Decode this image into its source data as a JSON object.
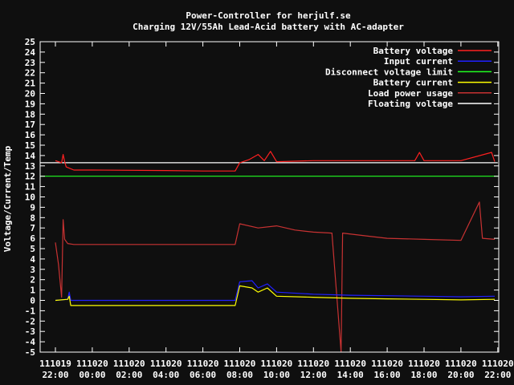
{
  "chart_data": {
    "type": "line",
    "title": "Power-Controller for herjulf.se",
    "subtitle": "Charging 12V/55Ah Lead-Acid battery with AC-adapter",
    "ylabel": "Voltage/Current/Temp",
    "xlabel": "",
    "ylim": [
      -5,
      25
    ],
    "xlim": [
      "2011-10-19 21:00",
      "2011-10-20 22:00"
    ],
    "y_ticks": [
      25,
      24,
      23,
      22,
      21,
      20,
      19,
      18,
      17,
      16,
      15,
      14,
      13,
      12,
      11,
      10,
      9,
      8,
      7,
      6,
      5,
      4,
      3,
      2,
      1,
      0,
      -1,
      -2,
      -3,
      -4,
      -5
    ],
    "x_ticks": [
      {
        "date": "111019",
        "time": "22:00"
      },
      {
        "date": "111020",
        "time": "00:00"
      },
      {
        "date": "111020",
        "time": "02:00"
      },
      {
        "date": "111020",
        "time": "04:00"
      },
      {
        "date": "111020",
        "time": "06:00"
      },
      {
        "date": "111020",
        "time": "08:00"
      },
      {
        "date": "111020",
        "time": "10:00"
      },
      {
        "date": "111020",
        "time": "12:00"
      },
      {
        "date": "111020",
        "time": "14:00"
      },
      {
        "date": "111020",
        "time": "16:00"
      },
      {
        "date": "111020",
        "time": "18:00"
      },
      {
        "date": "111020",
        "time": "20:00"
      },
      {
        "date": "111020",
        "time": "22:00"
      }
    ],
    "legend_position": "top-right",
    "grid": false,
    "series": [
      {
        "name": "Battery voltage",
        "color": "#ff2020",
        "points": [
          [
            "2011-10-19 22:00",
            13.5
          ],
          [
            "2011-10-19 22:20",
            13.3
          ],
          [
            "2011-10-19 22:25",
            14.1
          ],
          [
            "2011-10-19 22:30",
            13.4
          ],
          [
            "2011-10-19 22:35",
            12.9
          ],
          [
            "2011-10-19 23:00",
            12.6
          ],
          [
            "2011-10-20 00:00",
            12.6
          ],
          [
            "2011-10-20 04:00",
            12.55
          ],
          [
            "2011-10-20 06:00",
            12.5
          ],
          [
            "2011-10-20 07:45",
            12.5
          ],
          [
            "2011-10-20 08:00",
            13.3
          ],
          [
            "2011-10-20 08:30",
            13.6
          ],
          [
            "2011-10-20 09:00",
            14.1
          ],
          [
            "2011-10-20 09:20",
            13.5
          ],
          [
            "2011-10-20 09:40",
            14.4
          ],
          [
            "2011-10-20 10:00",
            13.4
          ],
          [
            "2011-10-20 12:00",
            13.5
          ],
          [
            "2011-10-20 14:00",
            13.5
          ],
          [
            "2011-10-20 16:00",
            13.5
          ],
          [
            "2011-10-20 17:30",
            13.5
          ],
          [
            "2011-10-20 17:45",
            14.3
          ],
          [
            "2011-10-20 18:00",
            13.5
          ],
          [
            "2011-10-20 20:00",
            13.5
          ],
          [
            "2011-10-20 21:40",
            14.3
          ],
          [
            "2011-10-20 21:50",
            13.4
          ]
        ]
      },
      {
        "name": "Input current",
        "color": "#2020ff",
        "points": [
          [
            "2011-10-19 22:00",
            0
          ],
          [
            "2011-10-19 22:40",
            0.1
          ],
          [
            "2011-10-19 22:45",
            0.8
          ],
          [
            "2011-10-19 22:50",
            0
          ],
          [
            "2011-10-20 07:45",
            0
          ],
          [
            "2011-10-20 08:00",
            1.8
          ],
          [
            "2011-10-20 08:40",
            1.9
          ],
          [
            "2011-10-20 09:00",
            1.2
          ],
          [
            "2011-10-20 09:30",
            1.6
          ],
          [
            "2011-10-20 10:00",
            0.8
          ],
          [
            "2011-10-20 12:00",
            0.6
          ],
          [
            "2011-10-20 14:00",
            0.5
          ],
          [
            "2011-10-20 16:00",
            0.45
          ],
          [
            "2011-10-20 18:00",
            0.4
          ],
          [
            "2011-10-20 20:00",
            0.35
          ],
          [
            "2011-10-20 21:50",
            0.4
          ]
        ]
      },
      {
        "name": "Disconnect voltage limit",
        "color": "#20ff20",
        "points": [
          [
            "2011-10-19 21:00",
            12.0
          ],
          [
            "2011-10-20 22:00",
            12.0
          ]
        ]
      },
      {
        "name": "Battery current",
        "color": "#ffff00",
        "points": [
          [
            "2011-10-19 22:00",
            0
          ],
          [
            "2011-10-19 22:40",
            0.1
          ],
          [
            "2011-10-19 22:45",
            0.4
          ],
          [
            "2011-10-19 22:50",
            -0.5
          ],
          [
            "2011-10-20 07:45",
            -0.5
          ],
          [
            "2011-10-20 08:00",
            1.4
          ],
          [
            "2011-10-20 08:40",
            1.2
          ],
          [
            "2011-10-20 09:00",
            0.8
          ],
          [
            "2011-10-20 09:30",
            1.2
          ],
          [
            "2011-10-20 10:00",
            0.4
          ],
          [
            "2011-10-20 12:00",
            0.3
          ],
          [
            "2011-10-20 14:00",
            0.2
          ],
          [
            "2011-10-20 16:00",
            0.15
          ],
          [
            "2011-10-20 18:00",
            0.1
          ],
          [
            "2011-10-20 20:00",
            0.05
          ],
          [
            "2011-10-20 21:50",
            0.1
          ]
        ]
      },
      {
        "name": "Load power usage",
        "color": "#c83232",
        "points": [
          [
            "2011-10-19 22:00",
            5.6
          ],
          [
            "2011-10-19 22:10",
            3.5
          ],
          [
            "2011-10-19 22:20",
            0.3
          ],
          [
            "2011-10-19 22:25",
            7.8
          ],
          [
            "2011-10-19 22:30",
            5.9
          ],
          [
            "2011-10-19 22:40",
            5.5
          ],
          [
            "2011-10-19 23:00",
            5.4
          ],
          [
            "2011-10-20 07:45",
            5.4
          ],
          [
            "2011-10-20 08:00",
            7.4
          ],
          [
            "2011-10-20 09:00",
            7.0
          ],
          [
            "2011-10-20 10:00",
            7.2
          ],
          [
            "2011-10-20 11:00",
            6.8
          ],
          [
            "2011-10-20 12:00",
            6.6
          ],
          [
            "2011-10-20 13:00",
            6.5
          ],
          [
            "2011-10-20 13:30",
            -5.0
          ],
          [
            "2011-10-20 13:35",
            6.5
          ],
          [
            "2011-10-20 15:00",
            6.2
          ],
          [
            "2011-10-20 16:00",
            6.0
          ],
          [
            "2011-10-20 18:00",
            5.9
          ],
          [
            "2011-10-20 20:00",
            5.8
          ],
          [
            "2011-10-20 21:00",
            9.5
          ],
          [
            "2011-10-20 21:10",
            6.0
          ],
          [
            "2011-10-20 21:50",
            5.9
          ]
        ]
      },
      {
        "name": "Floating voltage",
        "color": "#ffffff",
        "points": [
          [
            "2011-10-19 21:00",
            13.3
          ],
          [
            "2011-10-20 22:00",
            13.3
          ]
        ]
      }
    ]
  }
}
